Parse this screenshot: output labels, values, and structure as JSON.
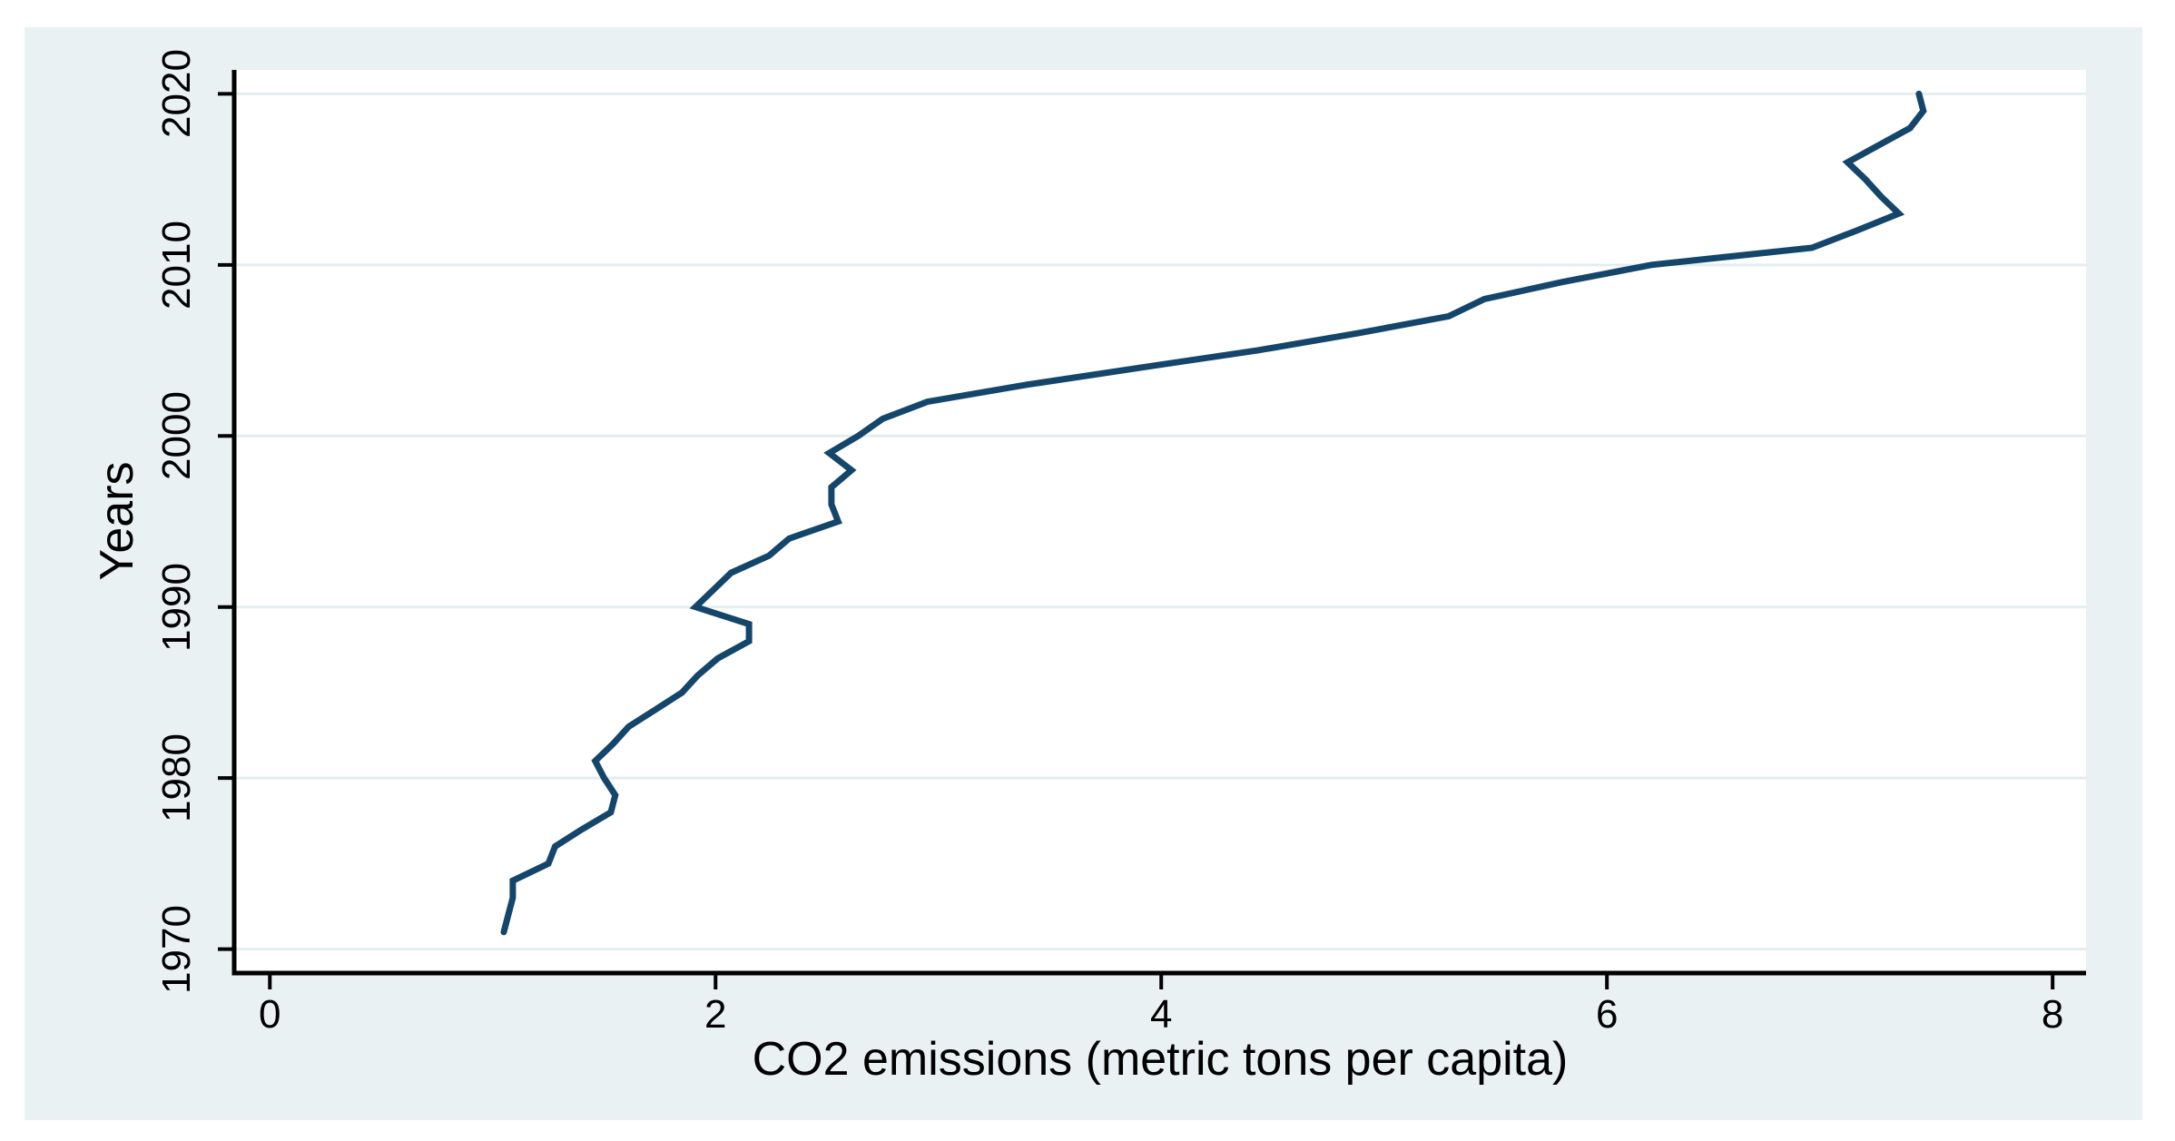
{
  "figure": {
    "background_color": "#ffffff",
    "panel_color": "#e9f1f2",
    "plot_background_color": "#ffffff",
    "gridline_color": "#e3eef0",
    "axis_color": "#000000"
  },
  "chart_data": {
    "type": "line",
    "title": "",
    "xlabel": "CO2 emissions (metric tons per capita)",
    "ylabel": "Years",
    "legend": "none",
    "grid": "horizontal gridlines at decade years",
    "line_color": "#14466b",
    "line_width": 7,
    "x_tick_labels": [
      "0",
      "2",
      "4",
      "6",
      "8"
    ],
    "x_tick_values": [
      0,
      2,
      4,
      6,
      8
    ],
    "y_tick_labels": [
      "1970",
      "1980",
      "1990",
      "2000",
      "2010",
      "2020"
    ],
    "y_tick_values": [
      1970,
      1980,
      1990,
      2000,
      2010,
      2020
    ],
    "xlim": [
      -0.16,
      8.15
    ],
    "ylim": [
      1968.6,
      2021.4
    ],
    "orientation": "value on x-axis, year on y-axis",
    "series": [
      {
        "name": "CO2 emissions (metric tons per capita)",
        "years": [
          1971,
          1972,
          1973,
          1974,
          1975,
          1976,
          1977,
          1978,
          1979,
          1980,
          1981,
          1982,
          1983,
          1984,
          1985,
          1986,
          1987,
          1988,
          1989,
          1990,
          1991,
          1992,
          1993,
          1994,
          1995,
          1996,
          1997,
          1998,
          1999,
          2000,
          2001,
          2002,
          2003,
          2004,
          2005,
          2006,
          2007,
          2008,
          2009,
          2010,
          2011,
          2012,
          2013,
          2014,
          2015,
          2016,
          2017,
          2018,
          2019,
          2020
        ],
        "values": [
          1.05,
          1.07,
          1.09,
          1.09,
          1.25,
          1.28,
          1.4,
          1.53,
          1.55,
          1.5,
          1.46,
          1.54,
          1.61,
          1.73,
          1.85,
          1.92,
          2.01,
          2.15,
          2.15,
          1.91,
          1.99,
          2.07,
          2.24,
          2.33,
          2.55,
          2.52,
          2.52,
          2.61,
          2.51,
          2.64,
          2.75,
          2.95,
          3.4,
          3.91,
          4.43,
          4.88,
          5.29,
          5.45,
          5.8,
          6.2,
          6.92,
          7.12,
          7.31,
          7.23,
          7.16,
          7.08,
          7.22,
          7.36,
          7.42,
          7.4
        ]
      }
    ]
  }
}
